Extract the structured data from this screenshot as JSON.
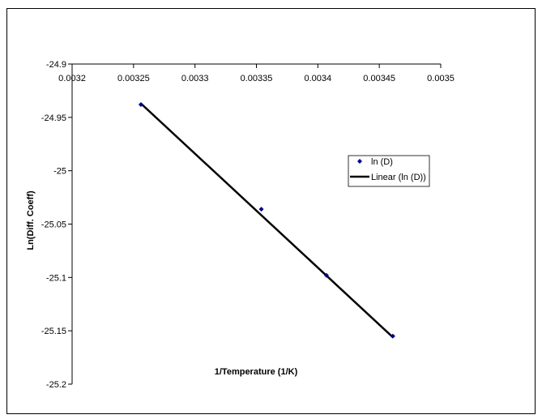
{
  "chart_data": {
    "type": "scatter",
    "title": "",
    "xlabel": "1/Temperature (1/K)",
    "ylabel": "Ln(Diff. Coeff)",
    "xlim": [
      0.0032,
      0.0035
    ],
    "ylim": [
      -25.2,
      -24.9
    ],
    "x_ticks": [
      "0.0032",
      "0.00325",
      "0.0033",
      "0.00335",
      "0.0034",
      "0.00345",
      "0.0035"
    ],
    "y_ticks": [
      "-24.9",
      "-24.95",
      "-25",
      "-25.05",
      "-25.1",
      "-25.15",
      "-25.2"
    ],
    "x_axis_position": "top",
    "grid": false,
    "legend_position": "right",
    "series": [
      {
        "name": "ln (D)",
        "kind": "scatter",
        "marker": "diamond",
        "color": "#00008b",
        "x": [
          0.003256,
          0.003354,
          0.003407,
          0.003461
        ],
        "y": [
          -24.938,
          -25.036,
          -25.098,
          -25.155
        ]
      },
      {
        "name": "Linear (ln (D))",
        "kind": "trendline",
        "color": "#000000",
        "x": [
          0.003256,
          0.003461
        ],
        "y": [
          -24.937,
          -25.156
        ]
      }
    ]
  }
}
